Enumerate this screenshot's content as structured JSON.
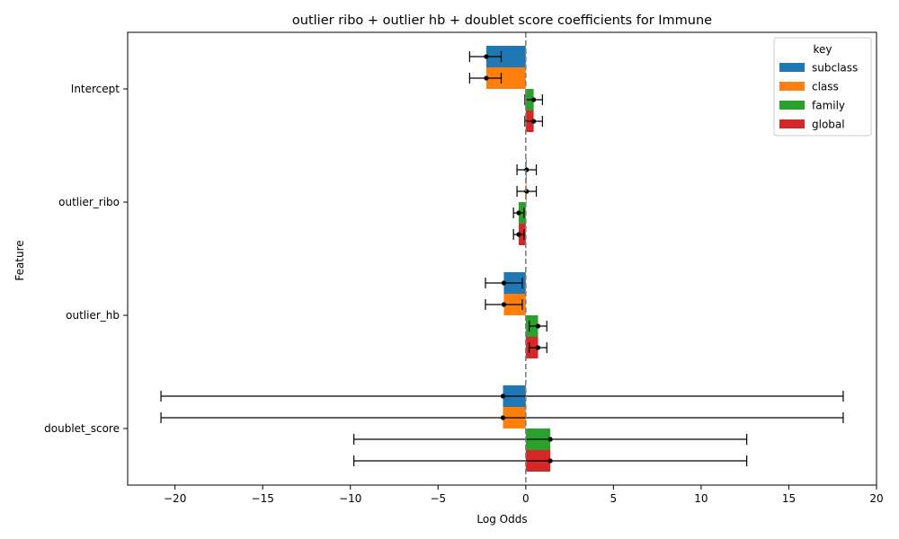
{
  "chart_data": {
    "type": "bar",
    "orientation": "horizontal",
    "title": "outlier ribo + outlier hb + doublet score coefficients for Immune",
    "xlabel": "Log Odds",
    "ylabel": "Feature",
    "xlim": [
      -22.7,
      20.0
    ],
    "x_ticks": [
      -20,
      -15,
      -10,
      -5,
      0,
      5,
      10,
      15,
      20
    ],
    "x_tick_labels": [
      "−20",
      "−15",
      "−10",
      "−5",
      "0",
      "5",
      "10",
      "15",
      "20"
    ],
    "categories": [
      "Intercept",
      "outlier_ribo",
      "outlier_hb",
      "doublet_score"
    ],
    "reference_line": 0,
    "legend": {
      "title": "key",
      "placement": "top-right"
    },
    "series": [
      {
        "name": "subclass",
        "color": "#1f77b4",
        "values": [
          -2.25,
          0.05,
          -1.25,
          -1.3
        ],
        "err_low": [
          -3.2,
          -0.5,
          -2.3,
          -20.8
        ],
        "err_high": [
          -1.4,
          0.6,
          -0.2,
          18.1
        ]
      },
      {
        "name": "class",
        "color": "#ff7f0e",
        "values": [
          -2.25,
          0.05,
          -1.25,
          -1.3
        ],
        "err_low": [
          -3.2,
          -0.5,
          -2.3,
          -20.8
        ],
        "err_high": [
          -1.4,
          0.6,
          -0.2,
          18.1
        ]
      },
      {
        "name": "family",
        "color": "#2ca02c",
        "values": [
          0.45,
          -0.4,
          0.7,
          1.4
        ],
        "err_low": [
          -0.05,
          -0.7,
          0.2,
          -9.8
        ],
        "err_high": [
          0.95,
          -0.1,
          1.2,
          12.6
        ]
      },
      {
        "name": "global",
        "color": "#d62728",
        "values": [
          0.45,
          -0.4,
          0.7,
          1.4
        ],
        "err_low": [
          -0.05,
          -0.7,
          0.2,
          -9.8
        ],
        "err_high": [
          0.95,
          -0.1,
          1.2,
          12.6
        ]
      }
    ]
  }
}
